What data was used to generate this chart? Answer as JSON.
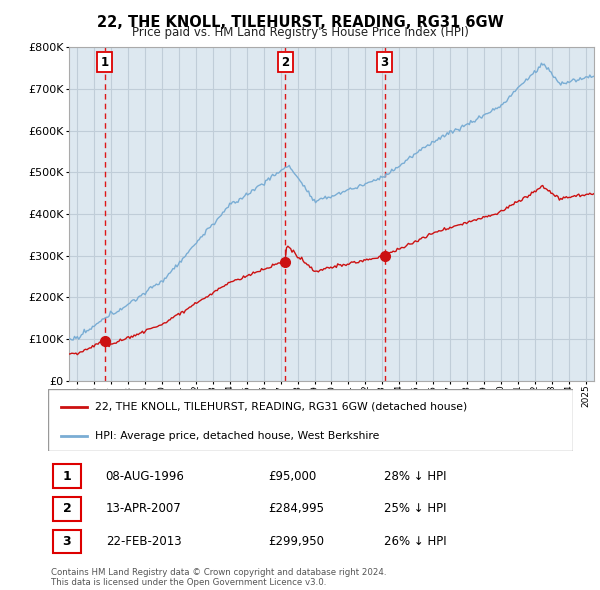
{
  "title": "22, THE KNOLL, TILEHURST, READING, RG31 6GW",
  "subtitle": "Price paid vs. HM Land Registry's House Price Index (HPI)",
  "hpi_color": "#7aadd4",
  "price_color": "#cc1111",
  "vline_color": "#dd0000",
  "bg_color": "#dde8f0",
  "grid_color": "#c0cdd8",
  "ylim": [
    0,
    800000
  ],
  "yticks": [
    0,
    100000,
    200000,
    300000,
    400000,
    500000,
    600000,
    700000,
    800000
  ],
  "ytick_labels": [
    "£0",
    "£100K",
    "£200K",
    "£300K",
    "£400K",
    "£500K",
    "£600K",
    "£700K",
    "£800K"
  ],
  "x_start_year": 1994.5,
  "x_end_year": 2025.5,
  "sale_dates": [
    1996.6,
    2007.28,
    2013.14
  ],
  "sale_prices": [
    95000,
    284995,
    299950
  ],
  "sale_labels": [
    "1",
    "2",
    "3"
  ],
  "legend_line1": "22, THE KNOLL, TILEHURST, READING, RG31 6GW (detached house)",
  "legend_line2": "HPI: Average price, detached house, West Berkshire",
  "table_rows": [
    {
      "num": "1",
      "date": "08-AUG-1996",
      "price": "£95,000",
      "note": "28% ↓ HPI"
    },
    {
      "num": "2",
      "date": "13-APR-2007",
      "price": "£284,995",
      "note": "25% ↓ HPI"
    },
    {
      "num": "3",
      "date": "22-FEB-2013",
      "price": "£299,950",
      "note": "26% ↓ HPI"
    }
  ],
  "footnote": "Contains HM Land Registry data © Crown copyright and database right 2024.\nThis data is licensed under the Open Government Licence v3.0."
}
